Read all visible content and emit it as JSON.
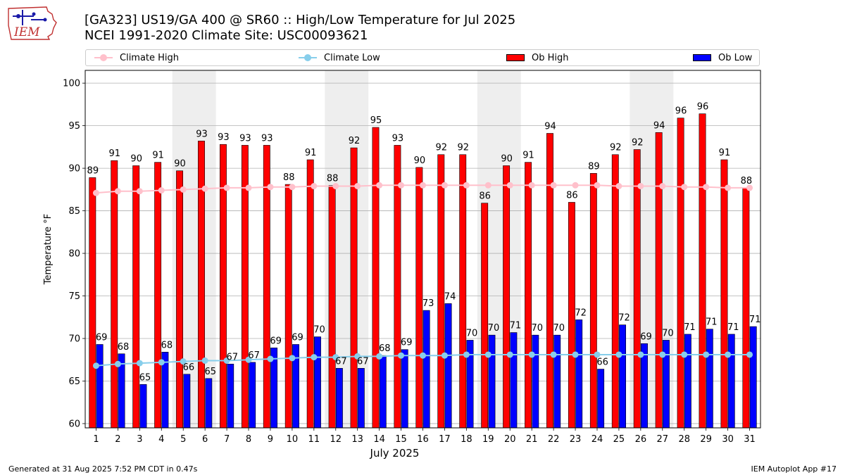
{
  "header": {
    "title_line1": "[GA323] US19/GA 400 @ SR60 :: High/Low Temperature for Jul 2025",
    "title_line2": "NCEI 1991-2020 Climate Site: USC00093621",
    "logo_text": "IEM"
  },
  "legend": {
    "items": [
      {
        "label": "Climate High",
        "kind": "line",
        "color": "#ffc0cb"
      },
      {
        "label": "Climate Low",
        "kind": "line",
        "color": "#87ceeb"
      },
      {
        "label": "Ob High",
        "kind": "bar",
        "color": "#ff0000"
      },
      {
        "label": "Ob Low",
        "kind": "bar",
        "color": "#0000ff"
      }
    ],
    "placement": "top"
  },
  "footer": {
    "left": "Generated at 31 Aug 2025 7:52 PM CDT in 0.47s",
    "right": "IEM Autoplot App #17"
  },
  "chart_data": {
    "type": "bar",
    "xlabel": "July 2025",
    "ylabel": "Temperature °F",
    "ylim": [
      59.5,
      101.5
    ],
    "yticks": [
      60,
      65,
      70,
      75,
      80,
      85,
      90,
      95,
      100
    ],
    "grid": true,
    "categories": [
      "1",
      "2",
      "3",
      "4",
      "5",
      "6",
      "7",
      "8",
      "9",
      "10",
      "11",
      "12",
      "13",
      "14",
      "15",
      "16",
      "17",
      "18",
      "19",
      "20",
      "21",
      "22",
      "23",
      "24",
      "25",
      "26",
      "27",
      "28",
      "29",
      "30",
      "31"
    ],
    "weekend_shading": [
      [
        5,
        6
      ],
      [
        12,
        13
      ],
      [
        19,
        20
      ],
      [
        26,
        27
      ]
    ],
    "series": [
      {
        "name": "Ob High",
        "type": "bar",
        "color": "#ff0000",
        "values": [
          88.9,
          90.9,
          90.3,
          90.7,
          89.7,
          93.2,
          92.8,
          92.7,
          92.7,
          88.1,
          91.0,
          88.0,
          92.4,
          94.8,
          92.7,
          90.1,
          91.6,
          91.6,
          85.9,
          90.3,
          90.7,
          94.1,
          86.0,
          89.4,
          91.6,
          92.2,
          94.2,
          95.9,
          96.4,
          91.0,
          87.7
        ],
        "labels": [
          "89",
          "91",
          "90",
          "91",
          "90",
          "93",
          "93",
          "93",
          "93",
          "88",
          "91",
          "88",
          "92",
          "95",
          "93",
          "90",
          "92",
          "92",
          "86",
          "90",
          "91",
          "94",
          "86",
          "89",
          "92",
          "92",
          "94",
          "96",
          "96",
          "91",
          "88"
        ]
      },
      {
        "name": "Ob Low",
        "type": "bar",
        "color": "#0000ff",
        "values": [
          69.3,
          68.2,
          64.6,
          68.4,
          65.8,
          65.3,
          67.0,
          67.2,
          68.9,
          69.3,
          70.2,
          66.5,
          66.5,
          68.0,
          68.7,
          73.3,
          74.1,
          69.8,
          70.4,
          70.7,
          70.4,
          70.4,
          72.2,
          66.4,
          71.6,
          69.4,
          69.8,
          70.5,
          71.1,
          70.5,
          71.4
        ],
        "labels": [
          "69",
          "68",
          "65",
          "68",
          "66",
          "65",
          "67",
          "67",
          "69",
          "69",
          "70",
          "67",
          "67",
          "68",
          "69",
          "73",
          "74",
          "70",
          "70",
          "71",
          "70",
          "70",
          "72",
          "66",
          "72",
          "69",
          "70",
          "71",
          "71",
          "71",
          "71"
        ]
      },
      {
        "name": "Climate High",
        "type": "line",
        "color": "#ffc0cb",
        "values": [
          87.1,
          87.3,
          87.3,
          87.4,
          87.5,
          87.6,
          87.7,
          87.7,
          87.8,
          87.8,
          87.9,
          87.9,
          87.9,
          88.0,
          88.0,
          88.0,
          88.0,
          88.0,
          88.0,
          88.0,
          88.0,
          88.0,
          88.0,
          88.0,
          87.9,
          87.9,
          87.9,
          87.8,
          87.8,
          87.7,
          87.7
        ]
      },
      {
        "name": "Climate Low",
        "type": "line",
        "color": "#87ceeb",
        "values": [
          66.8,
          67.0,
          67.1,
          67.2,
          67.3,
          67.4,
          67.4,
          67.5,
          67.6,
          67.7,
          67.8,
          67.8,
          67.9,
          67.9,
          68.0,
          68.0,
          68.0,
          68.1,
          68.1,
          68.1,
          68.1,
          68.1,
          68.1,
          68.1,
          68.1,
          68.1,
          68.1,
          68.1,
          68.1,
          68.1,
          68.1
        ]
      }
    ]
  }
}
